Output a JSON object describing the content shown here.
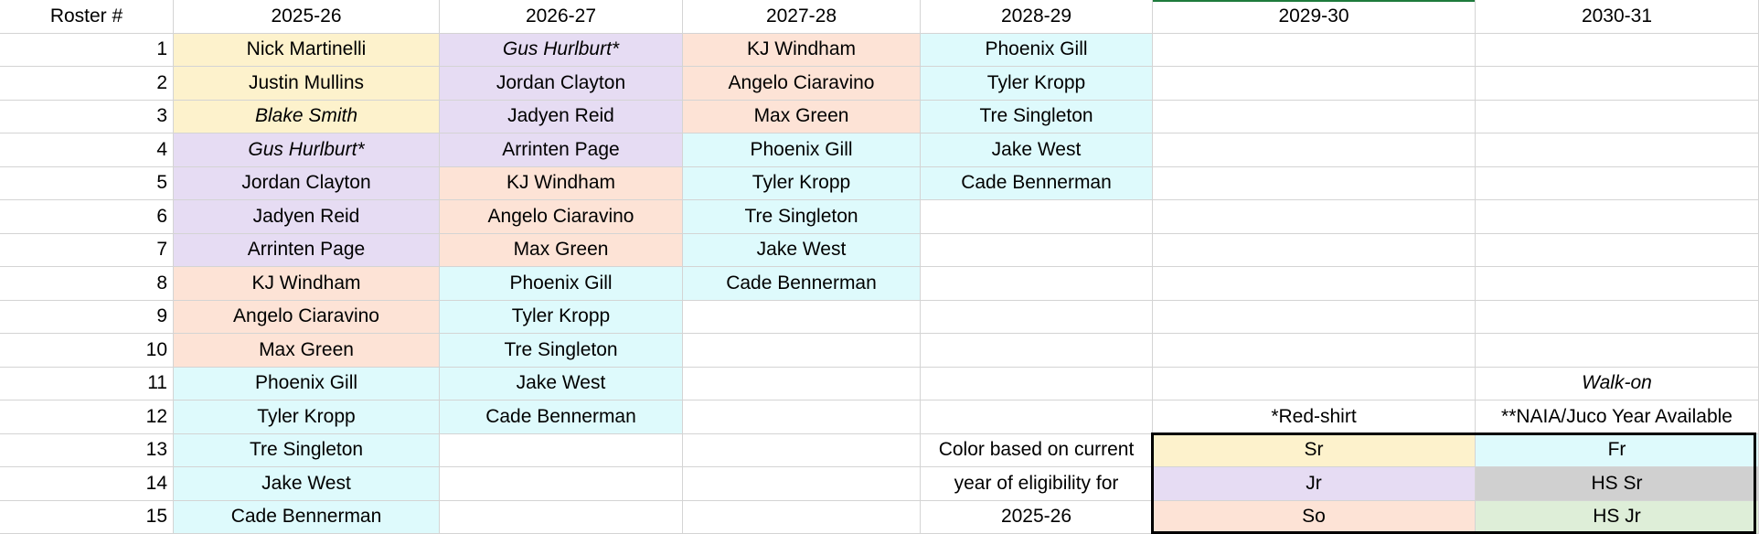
{
  "header": [
    "Roster #",
    "2025-26",
    "2026-27",
    "2027-28",
    "2028-29",
    "2029-30",
    "2030-31"
  ],
  "rows": [
    [
      1,
      {
        "text": "Nick Martinelli",
        "color": "#fdf2cc"
      },
      {
        "text": "Gus Hurlburt*",
        "color": "#e6dcf3",
        "italic": true
      },
      {
        "text": "KJ Windham",
        "color": "#fde3d6"
      },
      {
        "text": "Phoenix Gill",
        "color": "#defafc"
      },
      null,
      null
    ],
    [
      2,
      {
        "text": "Justin Mullins",
        "color": "#fdf2cc"
      },
      {
        "text": "Jordan Clayton",
        "color": "#e6dcf3"
      },
      {
        "text": "Angelo Ciaravino",
        "color": "#fde3d6"
      },
      {
        "text": "Tyler Kropp",
        "color": "#defafc"
      },
      null,
      null
    ],
    [
      3,
      {
        "text": "Blake Smith",
        "color": "#fdf2cc",
        "italic": true
      },
      {
        "text": "Jadyen Reid",
        "color": "#e6dcf3"
      },
      {
        "text": "Max Green",
        "color": "#fde3d6"
      },
      {
        "text": "Tre Singleton",
        "color": "#defafc"
      },
      null,
      null
    ],
    [
      4,
      {
        "text": "Gus Hurlburt*",
        "color": "#e6dcf3",
        "italic": true
      },
      {
        "text": "Arrinten Page",
        "color": "#e6dcf3"
      },
      {
        "text": "Phoenix Gill",
        "color": "#defafc"
      },
      {
        "text": "Jake West",
        "color": "#defafc"
      },
      null,
      null
    ],
    [
      5,
      {
        "text": "Jordan Clayton",
        "color": "#e6dcf3"
      },
      {
        "text": "KJ Windham",
        "color": "#fde3d6"
      },
      {
        "text": "Tyler Kropp",
        "color": "#defafc"
      },
      {
        "text": "Cade Bennerman",
        "color": "#defafc"
      },
      null,
      null
    ],
    [
      6,
      {
        "text": "Jadyen Reid",
        "color": "#e6dcf3"
      },
      {
        "text": "Angelo Ciaravino",
        "color": "#fde3d6"
      },
      {
        "text": "Tre Singleton",
        "color": "#defafc"
      },
      null,
      null,
      null
    ],
    [
      7,
      {
        "text": "Arrinten Page",
        "color": "#e6dcf3"
      },
      {
        "text": "Max Green",
        "color": "#fde3d6"
      },
      {
        "text": "Jake West",
        "color": "#defafc"
      },
      null,
      null,
      null
    ],
    [
      8,
      {
        "text": "KJ Windham",
        "color": "#fde3d6"
      },
      {
        "text": "Phoenix Gill",
        "color": "#defafc"
      },
      {
        "text": "Cade Bennerman",
        "color": "#defafc"
      },
      null,
      null,
      null
    ],
    [
      9,
      {
        "text": "Angelo Ciaravino",
        "color": "#fde3d6"
      },
      {
        "text": "Tyler Kropp",
        "color": "#defafc"
      },
      null,
      null,
      null,
      null
    ],
    [
      10,
      {
        "text": "Max Green",
        "color": "#fde3d6"
      },
      {
        "text": "Tre Singleton",
        "color": "#defafc"
      },
      null,
      null,
      null,
      null
    ],
    [
      11,
      {
        "text": "Phoenix Gill",
        "color": "#defafc"
      },
      {
        "text": "Jake West",
        "color": "#defafc"
      },
      null,
      null,
      null,
      {
        "text": "Walk-on",
        "italic": true
      }
    ],
    [
      12,
      {
        "text": "Tyler Kropp",
        "color": "#defafc"
      },
      {
        "text": "Cade Bennerman",
        "color": "#defafc"
      },
      null,
      null,
      {
        "text": "*Red-shirt"
      },
      {
        "text": "**NAIA/Juco Year Available"
      }
    ],
    [
      13,
      {
        "text": "Tre Singleton",
        "color": "#defafc"
      },
      null,
      null,
      {
        "text": "Color based on current"
      },
      {
        "text": "Sr",
        "color": "#fdf2cc"
      },
      {
        "text": "Fr",
        "color": "#defafc"
      }
    ],
    [
      14,
      {
        "text": "Jake West",
        "color": "#defafc"
      },
      null,
      null,
      {
        "text": "year of eligibility for"
      },
      {
        "text": "Jr",
        "color": "#e6dcf3"
      },
      {
        "text": "HS Sr",
        "color": "#d0d0d0"
      }
    ],
    [
      15,
      {
        "text": "Cade Bennerman",
        "color": "#defafc"
      },
      null,
      null,
      {
        "text": "2025-26"
      },
      {
        "text": "So",
        "color": "#fde3d6"
      },
      {
        "text": "HS Jr",
        "color": "#deeed8"
      }
    ]
  ]
}
